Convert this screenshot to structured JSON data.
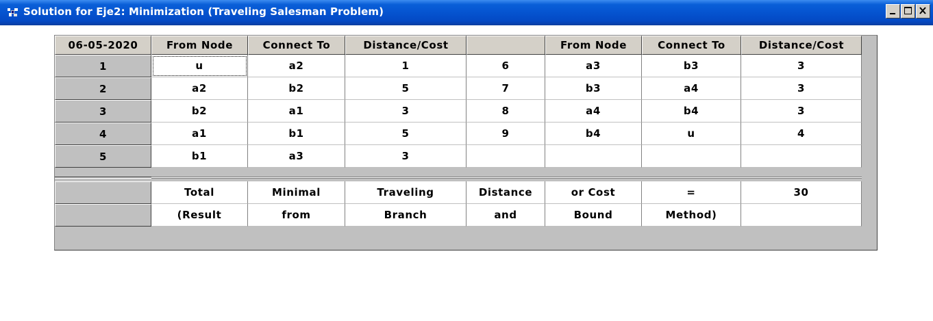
{
  "window": {
    "title": "Solution for Eje2: Minimization (Traveling Salesman Problem)"
  },
  "grid": {
    "corner": "06-05-2020",
    "headers": [
      "From Node",
      "Connect To",
      "Distance/Cost",
      "",
      "From Node",
      "Connect To",
      "Distance/Cost"
    ],
    "row_labels": [
      "1",
      "2",
      "3",
      "4",
      "5"
    ],
    "rows": [
      [
        "u",
        "a2",
        "1",
        "6",
        "a3",
        "b3",
        "3"
      ],
      [
        "a2",
        "b2",
        "5",
        "7",
        "b3",
        "a4",
        "3"
      ],
      [
        "b2",
        "a1",
        "3",
        "8",
        "a4",
        "b4",
        "3"
      ],
      [
        "a1",
        "b1",
        "5",
        "9",
        "b4",
        "u",
        "4"
      ],
      [
        "b1",
        "a3",
        "3",
        "",
        "",
        "",
        ""
      ]
    ],
    "summary_rows": [
      [
        "Total",
        "Minimal",
        "Traveling",
        "Distance",
        "or Cost",
        "=",
        "30"
      ],
      [
        "(Result",
        "from",
        "Branch",
        "and",
        "Bound",
        "Method)",
        ""
      ]
    ]
  }
}
